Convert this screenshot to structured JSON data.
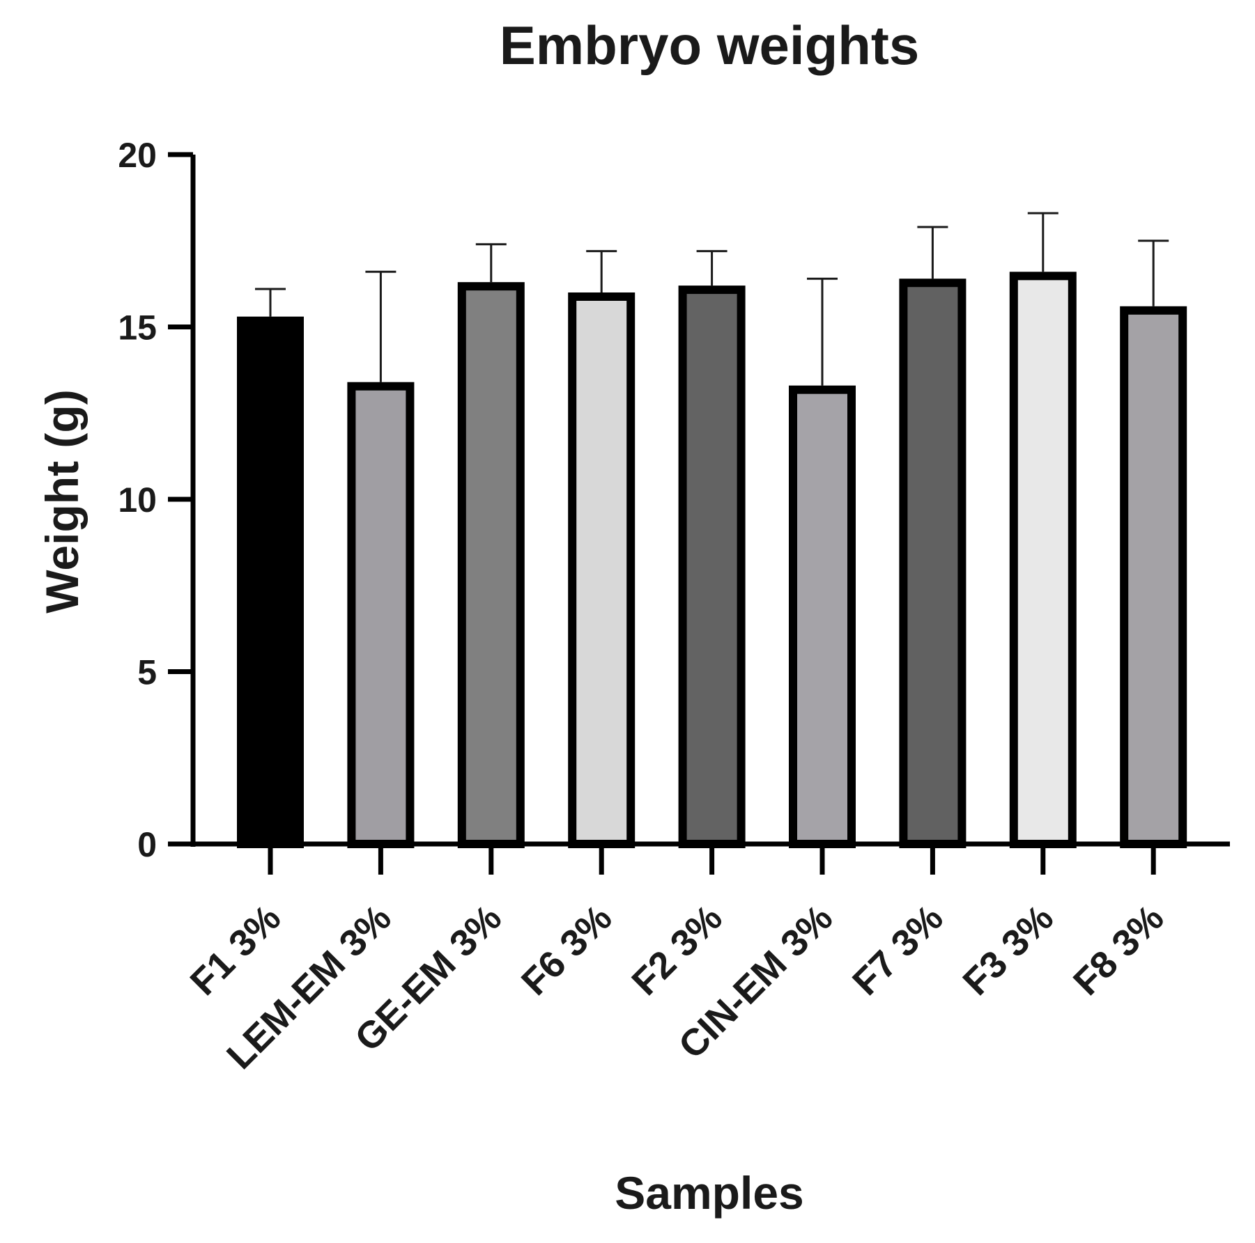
{
  "chart_data": {
    "type": "bar",
    "title": "Embryo weights",
    "xlabel": "Samples",
    "ylabel": "Weight (g)",
    "ylim": [
      0,
      20
    ],
    "yticks": [
      0,
      5,
      10,
      15,
      20
    ],
    "ytick_labels": [
      "0",
      "5",
      "10",
      "15",
      "20"
    ],
    "categories": [
      "F1 3%",
      "LEM-EM 3%",
      "GE-EM 3%",
      "F6 3%",
      "F2 3%",
      "CIN-EM 3%",
      "F7 3%",
      "F3 3%",
      "F8 3%"
    ],
    "values": [
      15.3,
      13.4,
      16.3,
      16.0,
      16.2,
      13.3,
      16.4,
      16.6,
      15.6
    ],
    "errors": [
      0.8,
      3.2,
      1.1,
      1.2,
      1.0,
      3.1,
      1.5,
      1.7,
      1.9
    ],
    "colors": [
      "#000000",
      "#a09ea3",
      "#808080",
      "#d8d8d8",
      "#636363",
      "#a5a3a8",
      "#616161",
      "#e8e8e8",
      "#a4a2a6"
    ],
    "grid": false,
    "legend": "none"
  }
}
